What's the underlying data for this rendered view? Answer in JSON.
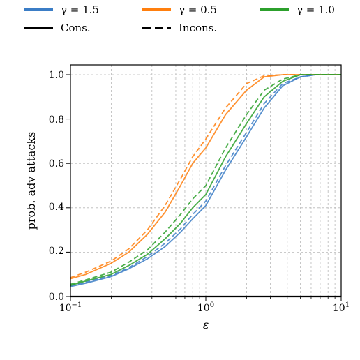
{
  "chart_data": {
    "type": "line",
    "title": "",
    "xlabel": "ε",
    "ylabel": "prob. adv attacks",
    "xscale": "log",
    "xlim": [
      0.1,
      10
    ],
    "ylim": [
      0.0,
      1.0
    ],
    "grid": true,
    "legend_position": "top, outside plot",
    "x_tick_labels": [
      {
        "base": "10",
        "exp": "−1"
      },
      {
        "base": "10",
        "exp": "0"
      },
      {
        "base": "10",
        "exp": "1"
      }
    ],
    "y_tick_labels": [
      "0.0",
      "0.2",
      "0.4",
      "0.6",
      "0.8",
      "1.0"
    ],
    "legend": {
      "colors": [
        {
          "label": "γ = 1.5",
          "color": "#3b7dc6"
        },
        {
          "label": "γ = 0.5",
          "color": "#ff7f0e"
        },
        {
          "label": "γ = 1.0",
          "color": "#2ca02c"
        }
      ],
      "styles": [
        {
          "label": "Cons.",
          "dash": "solid"
        },
        {
          "label": "Incons.",
          "dash": "dashed"
        }
      ]
    },
    "x": [
      0.1,
      0.13,
      0.2,
      0.27,
      0.37,
      0.5,
      0.65,
      0.8,
      1.0,
      1.4,
      2.0,
      2.7,
      3.7,
      5.0,
      6.5,
      10.0
    ],
    "series": [
      {
        "gamma": "γ = 1.5",
        "style": "Cons.",
        "color": "#3b7dc6",
        "dash": "solid",
        "values": [
          0.045,
          0.06,
          0.09,
          0.125,
          0.17,
          0.225,
          0.29,
          0.35,
          0.41,
          0.57,
          0.72,
          0.85,
          0.95,
          0.99,
          1.0,
          1.0
        ]
      },
      {
        "gamma": "γ = 1.5",
        "style": "Incons.",
        "color": "#3b7dc6",
        "dash": "dashed",
        "values": [
          0.05,
          0.065,
          0.095,
          0.13,
          0.18,
          0.24,
          0.305,
          0.37,
          0.43,
          0.59,
          0.74,
          0.87,
          0.96,
          0.99,
          1.0,
          1.0
        ]
      },
      {
        "gamma": "γ = 0.5",
        "style": "Cons.",
        "color": "#ff7f0e",
        "dash": "solid",
        "values": [
          0.08,
          0.1,
          0.15,
          0.2,
          0.28,
          0.38,
          0.5,
          0.6,
          0.67,
          0.82,
          0.93,
          0.99,
          1.0,
          1.0,
          1.0,
          1.0
        ]
      },
      {
        "gamma": "γ = 0.5",
        "style": "Incons.",
        "color": "#ff7f0e",
        "dash": "dashed",
        "values": [
          0.085,
          0.11,
          0.16,
          0.215,
          0.3,
          0.41,
          0.53,
          0.63,
          0.71,
          0.85,
          0.96,
          0.995,
          1.0,
          1.0,
          1.0,
          1.0
        ]
      },
      {
        "gamma": "γ = 1.0",
        "style": "Cons.",
        "color": "#2ca02c",
        "dash": "solid",
        "values": [
          0.05,
          0.07,
          0.1,
          0.14,
          0.19,
          0.26,
          0.33,
          0.4,
          0.46,
          0.63,
          0.78,
          0.9,
          0.97,
          1.0,
          1.0,
          1.0
        ]
      },
      {
        "gamma": "γ = 1.0",
        "style": "Incons.",
        "color": "#2ca02c",
        "dash": "dashed",
        "values": [
          0.055,
          0.075,
          0.11,
          0.155,
          0.21,
          0.29,
          0.37,
          0.44,
          0.5,
          0.67,
          0.82,
          0.93,
          0.98,
          1.0,
          1.0,
          1.0
        ]
      },
      {
        "gamma": "",
        "style": "",
        "color": "#000000",
        "dash": "solid",
        "values": [
          0,
          0,
          0,
          0,
          0,
          0,
          0,
          0,
          0,
          0,
          0,
          0,
          0,
          0,
          0,
          0
        ]
      }
    ]
  }
}
